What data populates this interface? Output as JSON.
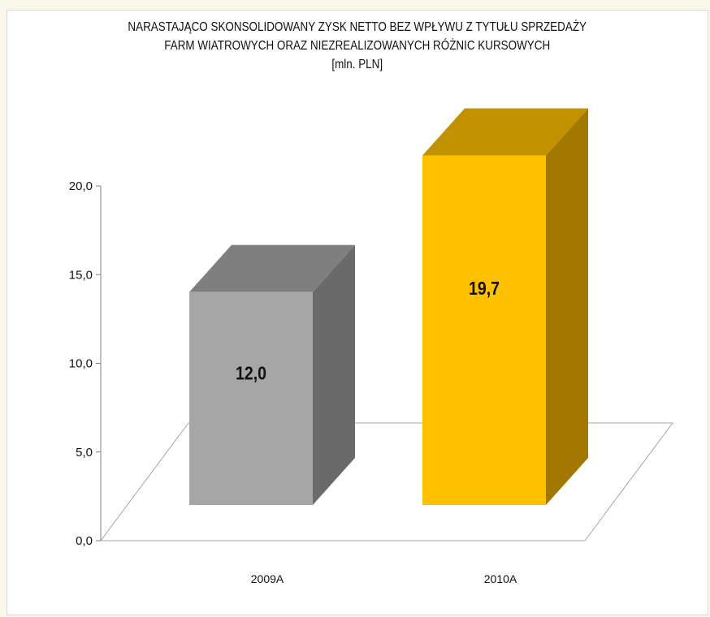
{
  "chart_data": {
    "type": "bar",
    "title_lines": [
      "NARASTAJĄCO SKONSOLIDOWANY ZYSK NETTO BEZ WPŁYWU Z TYTUŁU SPRZEDAŻY",
      "FARM WIATROWYCH ORAZ NIEZREALIZOWANYCH RÓŻNIC KURSOWYCH",
      "[mln. PLN]"
    ],
    "categories": [
      "2009A",
      "2010A"
    ],
    "values": [
      12.0,
      19.7
    ],
    "data_labels": [
      "12,0",
      "19,7"
    ],
    "ylim": [
      0,
      20
    ],
    "yticks": [
      "0,0",
      "5,0",
      "10,0",
      "15,0",
      "20,0"
    ],
    "grid": false,
    "style": "3d-column",
    "colors": {
      "2009A": {
        "front": "#a6a6a6",
        "top": "#7f7f7f",
        "side": "#6a6a6a"
      },
      "2010A": {
        "front": "#ffc000",
        "top": "#c29100",
        "side": "#a37800"
      }
    }
  }
}
